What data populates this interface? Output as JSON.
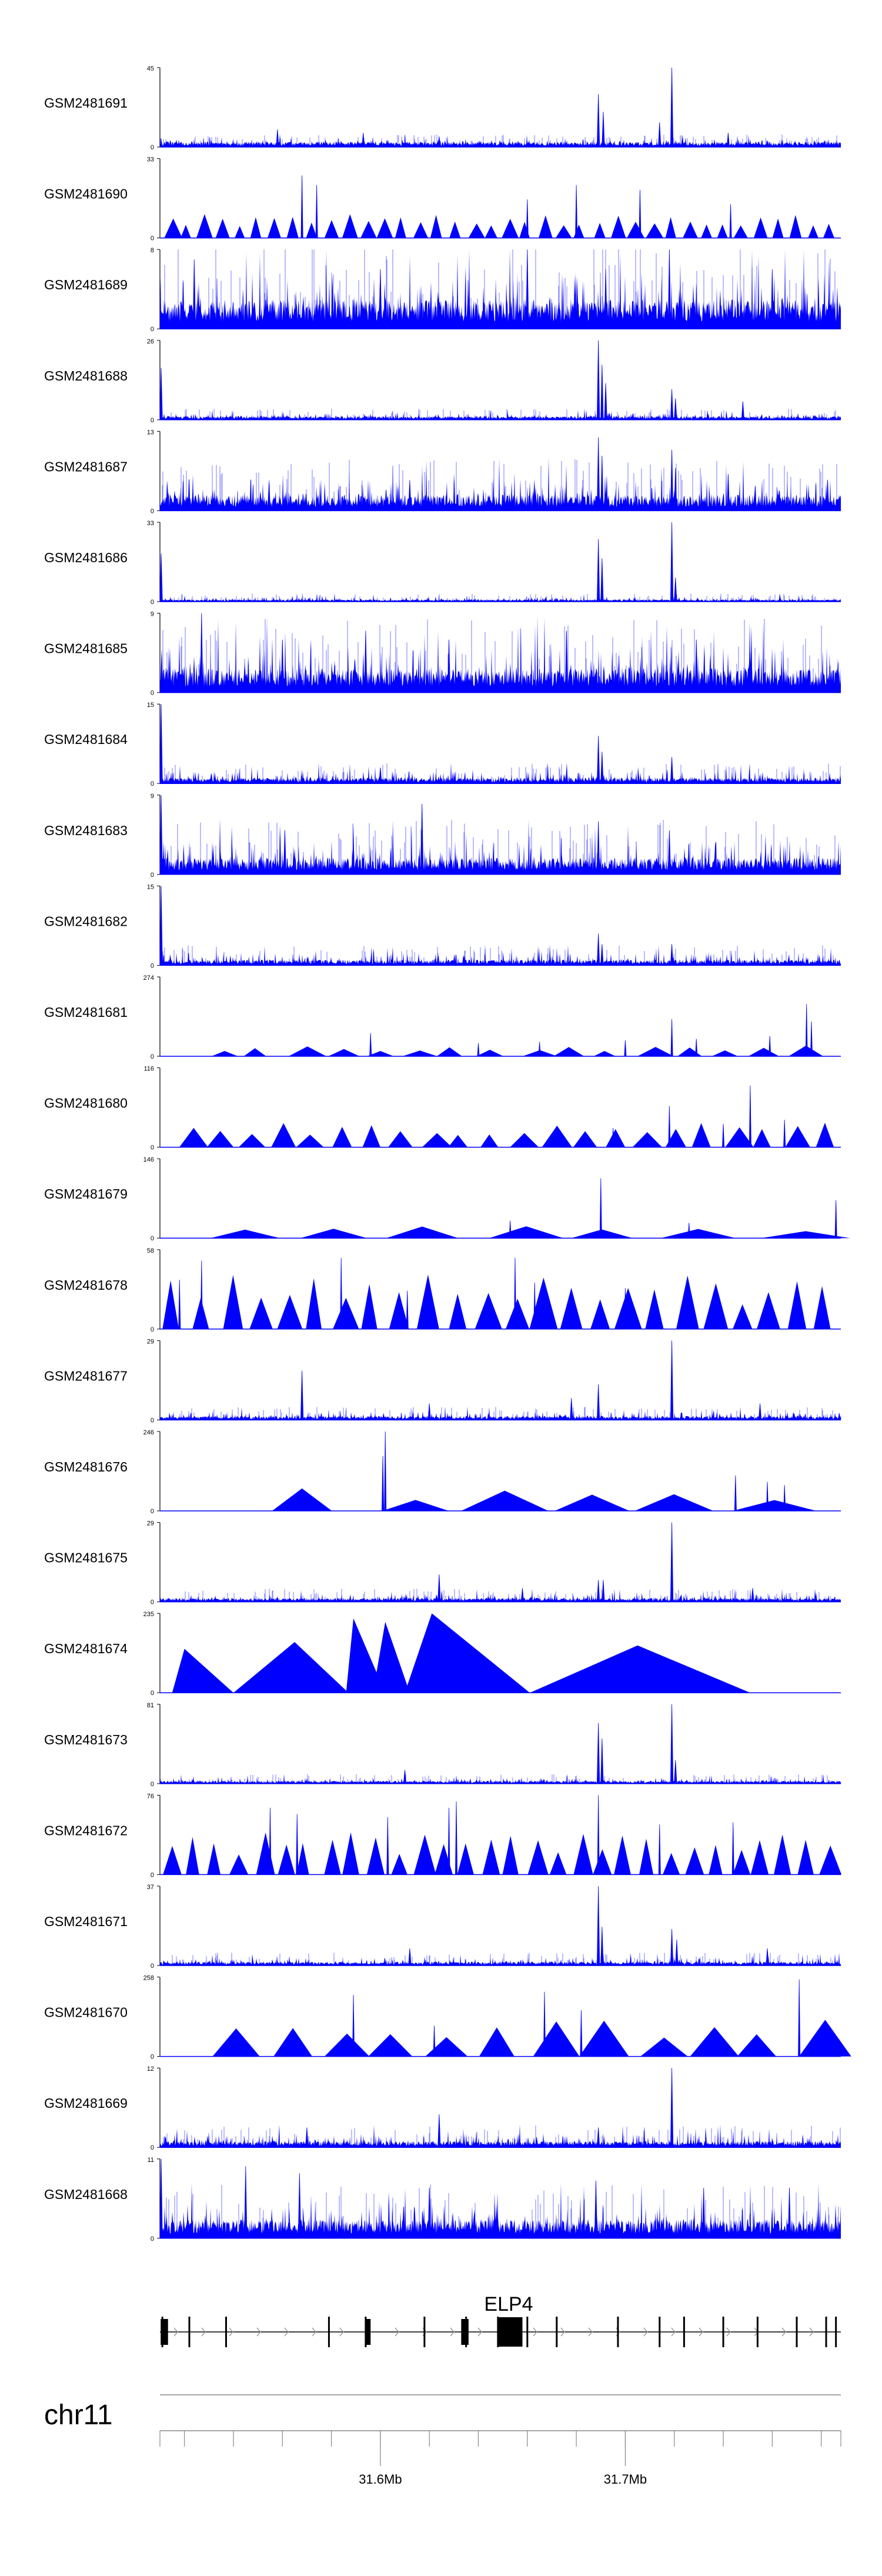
{
  "chart_data": {
    "type": "area",
    "description_kind": "genome browser coverage tracks",
    "region": {
      "chromosome": "chr11",
      "start": 31510000,
      "end": 31788000,
      "ticks": [
        {
          "pos": 31600000,
          "label": "31.6Mb"
        },
        {
          "pos": 31700000,
          "label": "31.7Mb"
        }
      ],
      "minor_tick_step": 20000
    },
    "gene": {
      "name": "ELP4",
      "strand": "+",
      "exons": [
        31511000,
        31522000,
        31537000,
        31579000,
        31594000,
        31618000,
        31635000,
        31648000,
        31660000,
        31672000,
        31697000,
        31714000,
        31724000,
        31740000,
        31754000,
        31770000,
        31782000,
        31786000
      ],
      "coding_blocks": [
        [
          31510300,
          31513300
        ],
        [
          31594200,
          31596000
        ],
        [
          31633000,
          31636000
        ],
        [
          31648000,
          31658000
        ]
      ]
    },
    "colors": {
      "signal": "#0000ff",
      "axis": "#000000",
      "gene": "#000000",
      "arrow": "#999999"
    },
    "tracks": [
      {
        "name": "GSM2481691",
        "ymax": 45,
        "style": "dense",
        "baseline": 2.5,
        "noise": 3,
        "spikes": [
          [
            31558000,
            10
          ],
          [
            31593000,
            8
          ],
          [
            31624000,
            6
          ],
          [
            31689000,
            30
          ],
          [
            31691000,
            20
          ],
          [
            31719000,
            45
          ],
          [
            31714000,
            14
          ],
          [
            31742000,
            8
          ]
        ]
      },
      {
        "name": "GSM2481690",
        "ymax": 33,
        "style": "triangles",
        "seed_count": 38,
        "tmax": 10,
        "spikes": [
          [
            31568000,
            26
          ],
          [
            31574000,
            22
          ],
          [
            31680000,
            22
          ],
          [
            31660000,
            16
          ],
          [
            31706000,
            20
          ],
          [
            31743000,
            14
          ]
        ]
      },
      {
        "name": "GSM2481689",
        "ymax": 8,
        "style": "dense",
        "baseline": 2.5,
        "noise": 3.8,
        "spikes": [
          [
            31524000,
            7
          ],
          [
            31600000,
            6
          ],
          [
            31660000,
            8
          ],
          [
            31692000,
            6
          ],
          [
            31718000,
            8
          ],
          [
            31760000,
            6
          ]
        ]
      },
      {
        "name": "GSM2481688",
        "ymax": 26,
        "style": "dense",
        "baseline": 1,
        "noise": 1.5,
        "spikes": [
          [
            31510500,
            17
          ],
          [
            31689000,
            26
          ],
          [
            31690500,
            18
          ],
          [
            31692000,
            12
          ],
          [
            31719000,
            10
          ],
          [
            31720500,
            7
          ],
          [
            31748000,
            6
          ]
        ]
      },
      {
        "name": "GSM2481687",
        "ymax": 13,
        "style": "dense",
        "baseline": 2.2,
        "noise": 3.5,
        "spikes": [
          [
            31689000,
            12
          ],
          [
            31690500,
            9
          ],
          [
            31719000,
            10
          ],
          [
            31720500,
            7
          ],
          [
            31612000,
            5
          ],
          [
            31742000,
            6
          ]
        ]
      },
      {
        "name": "GSM2481686",
        "ymax": 33,
        "style": "dense",
        "baseline": 0.8,
        "noise": 1.4,
        "spikes": [
          [
            31510500,
            20
          ],
          [
            31689000,
            26
          ],
          [
            31690500,
            18
          ],
          [
            31719000,
            33
          ],
          [
            31720500,
            10
          ]
        ]
      },
      {
        "name": "GSM2481685",
        "ymax": 9,
        "style": "dense",
        "baseline": 2.3,
        "noise": 3.5,
        "spikes": [
          [
            31527000,
            9
          ],
          [
            31560000,
            6
          ],
          [
            31594000,
            7
          ],
          [
            31628000,
            6
          ],
          [
            31676000,
            7
          ],
          [
            31729000,
            6
          ]
        ]
      },
      {
        "name": "GSM2481684",
        "ymax": 15,
        "style": "dense",
        "baseline": 0.9,
        "noise": 1.6,
        "spikes": [
          [
            31510500,
            15
          ],
          [
            31689000,
            9
          ],
          [
            31690500,
            6
          ],
          [
            31719000,
            5
          ],
          [
            31600000,
            3
          ]
        ]
      },
      {
        "name": "GSM2481683",
        "ymax": 9,
        "style": "dense",
        "baseline": 1.6,
        "noise": 2.6,
        "spikes": [
          [
            31617000,
            8
          ],
          [
            31689000,
            6
          ],
          [
            31561000,
            5
          ],
          [
            31718000,
            5
          ],
          [
            31510500,
            9
          ]
        ]
      },
      {
        "name": "GSM2481682",
        "ymax": 15,
        "style": "dense",
        "baseline": 0.9,
        "noise": 1.6,
        "spikes": [
          [
            31510500,
            15
          ],
          [
            31689000,
            6
          ],
          [
            31690500,
            4
          ],
          [
            31719000,
            4
          ]
        ]
      },
      {
        "name": "GSM2481681",
        "ymax": 274,
        "style": "triangles",
        "range": [
          31528000,
          31781000
        ],
        "seed_count": 16,
        "tmax": 40,
        "spikes": [
          [
            31596000,
            80
          ],
          [
            31719000,
            128
          ],
          [
            31759000,
            70
          ],
          [
            31700000,
            55
          ],
          [
            31729000,
            60
          ],
          [
            31774000,
            180
          ],
          [
            31776000,
            120
          ],
          [
            31640000,
            45
          ],
          [
            31665000,
            50
          ]
        ]
      },
      {
        "name": "GSM2481680",
        "ymax": 116,
        "style": "triangles",
        "range": [
          31516000,
          31788000
        ],
        "seed_count": 22,
        "tmax": 36,
        "spikes": [
          [
            31718000,
            60
          ],
          [
            31751000,
            90
          ],
          [
            31765000,
            40
          ],
          [
            31695000,
            28
          ],
          [
            31740000,
            34
          ]
        ]
      },
      {
        "name": "GSM2481679",
        "ymax": 146,
        "style": "triangles",
        "range": [
          31526000,
          31787000
        ],
        "seed_count": 7,
        "tmax": 28,
        "spikes": [
          [
            31690000,
            110
          ],
          [
            31726000,
            28
          ],
          [
            31786000,
            70
          ],
          [
            31653000,
            32
          ]
        ]
      },
      {
        "name": "GSM2481678",
        "ymax": 58,
        "style": "triangles",
        "seed_count": 24,
        "tmax": 40,
        "spikes": [
          [
            31527000,
            50
          ],
          [
            31518000,
            36
          ],
          [
            31584000,
            52
          ],
          [
            31655000,
            52
          ],
          [
            31611000,
            28
          ],
          [
            31663000,
            34
          ],
          [
            31700000,
            30
          ]
        ]
      },
      {
        "name": "GSM2481677",
        "ymax": 29,
        "style": "dense",
        "baseline": 1.2,
        "noise": 2,
        "spikes": [
          [
            31568000,
            18
          ],
          [
            31689000,
            13
          ],
          [
            31719000,
            29
          ],
          [
            31678000,
            8
          ],
          [
            31755000,
            6
          ],
          [
            31620000,
            6
          ]
        ]
      },
      {
        "name": "GSM2481676",
        "ymax": 246,
        "style": "triangles",
        "range": [
          31555000,
          31778000
        ],
        "seed_count": 6,
        "tmax": 70,
        "spikes": [
          [
            31602000,
            246
          ],
          [
            31601000,
            170
          ],
          [
            31745000,
            110
          ],
          [
            31758000,
            90
          ],
          [
            31765000,
            80
          ]
        ]
      },
      {
        "name": "GSM2481675",
        "ymax": 29,
        "style": "dense",
        "baseline": 1.2,
        "noise": 2,
        "spikes": [
          [
            31719000,
            29
          ],
          [
            31624000,
            10
          ],
          [
            31689000,
            8
          ],
          [
            31691000,
            8
          ],
          [
            31658000,
            5
          ],
          [
            31752000,
            5
          ]
        ]
      },
      {
        "name": "GSM2481674",
        "ymax": 235,
        "style": "triangles",
        "range": [
          31515000,
          31751000
        ],
        "seed_count": 0,
        "tmax": 0,
        "peaks": [
          [
            31515000,
            31520000,
            31540000,
            130
          ],
          [
            31540000,
            31565000,
            31587000,
            150
          ],
          [
            31588000,
            31590000,
            31594000,
            10
          ],
          [
            31586000,
            31589000,
            31602000,
            220
          ],
          [
            31597000,
            31602000,
            31612000,
            210
          ],
          [
            31610000,
            31621000,
            31661000,
            235
          ],
          [
            31661000,
            31705000,
            31751000,
            140
          ]
        ]
      },
      {
        "name": "GSM2481673",
        "ymax": 81,
        "style": "dense",
        "baseline": 2.5,
        "noise": 4,
        "spikes": [
          [
            31689000,
            62
          ],
          [
            31690500,
            46
          ],
          [
            31719000,
            81
          ],
          [
            31720500,
            24
          ],
          [
            31610000,
            14
          ]
        ]
      },
      {
        "name": "GSM2481672",
        "ymax": 76,
        "style": "triangles",
        "seed_count": 30,
        "tmax": 42,
        "spikes": [
          [
            31555000,
            64
          ],
          [
            31566000,
            58
          ],
          [
            31603000,
            55
          ],
          [
            31628000,
            64
          ],
          [
            31631000,
            70
          ],
          [
            31689000,
            76
          ],
          [
            31714000,
            48
          ],
          [
            31744000,
            50
          ]
        ]
      },
      {
        "name": "GSM2481671",
        "ymax": 37,
        "style": "dense",
        "baseline": 1.5,
        "noise": 2.5,
        "spikes": [
          [
            31689000,
            37
          ],
          [
            31690500,
            18
          ],
          [
            31719000,
            17
          ],
          [
            31721000,
            12
          ],
          [
            31612000,
            8
          ],
          [
            31758000,
            8
          ]
        ]
      },
      {
        "name": "GSM2481670",
        "ymax": 258,
        "style": "triangles",
        "range": [
          31530000,
          31788000
        ],
        "seed_count": 12,
        "tmax": 120,
        "spikes": [
          [
            31589000,
            200
          ],
          [
            31667000,
            210
          ],
          [
            31682000,
            150
          ],
          [
            31771000,
            250
          ],
          [
            31622000,
            100
          ]
        ]
      },
      {
        "name": "GSM2481669",
        "ymax": 12,
        "style": "dense",
        "baseline": 0.8,
        "noise": 1.4,
        "spikes": [
          [
            31719000,
            12
          ],
          [
            31624000,
            5
          ],
          [
            31689000,
            3
          ],
          [
            31570000,
            3
          ]
        ]
      },
      {
        "name": "GSM2481668",
        "ymax": 11,
        "style": "dense",
        "baseline": 2.2,
        "noise": 3.2,
        "spikes": [
          [
            31545000,
            10
          ],
          [
            31510500,
            11
          ],
          [
            31567000,
            9
          ],
          [
            31620000,
            7
          ],
          [
            31688000,
            8
          ],
          [
            31732000,
            7
          ],
          [
            31767000,
            7
          ]
        ]
      }
    ]
  }
}
